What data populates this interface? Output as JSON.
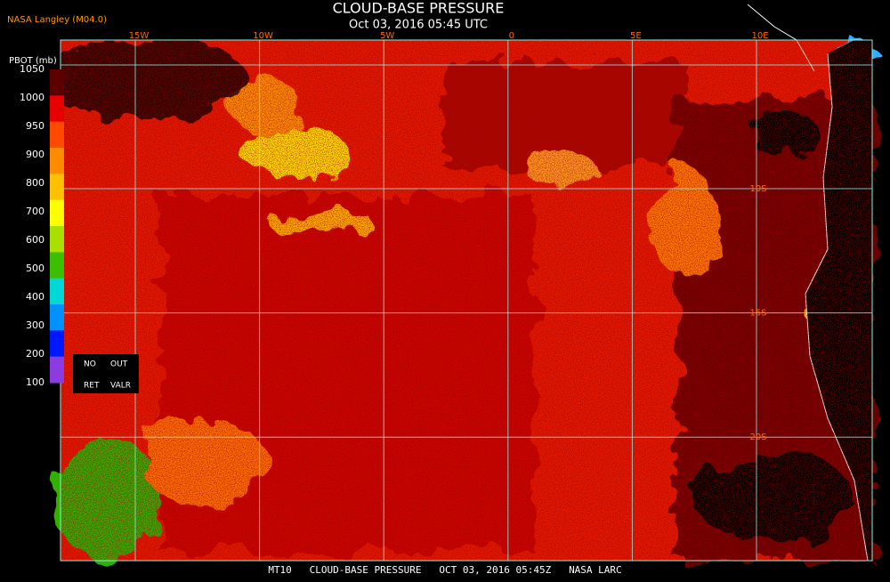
{
  "header": {
    "title": "CLOUD-BASE PRESSURE",
    "subtitle": "Oct 03, 2016 05:45 UTC",
    "source": "NASA Langley (M04.0)"
  },
  "legend": {
    "label": "PBOT (mb)",
    "ticks": [
      "1050",
      "1000",
      "950",
      "900",
      "800",
      "700",
      "600",
      "500",
      "400",
      "300",
      "200",
      "100"
    ],
    "colors": [
      "#5c0000",
      "#e80000",
      "#ff4a00",
      "#ff8c00",
      "#ffc000",
      "#ffff00",
      "#a8e000",
      "#3cbf00",
      "#00d8d8",
      "#0090ff",
      "#0018ff",
      "#8a3ce0"
    ],
    "flags": [
      "NO",
      "OUT",
      "RET",
      "VALR"
    ]
  },
  "grid": {
    "lon_labels": [
      "15W",
      "10W",
      "5W",
      "0",
      "5E",
      "10E"
    ],
    "lat_labels": [
      "10S",
      "15S",
      "20S"
    ]
  },
  "footer": "MT10   CLOUD-BASE PRESSURE   OCT 03, 2016 05:45Z   NASA LARC"
}
